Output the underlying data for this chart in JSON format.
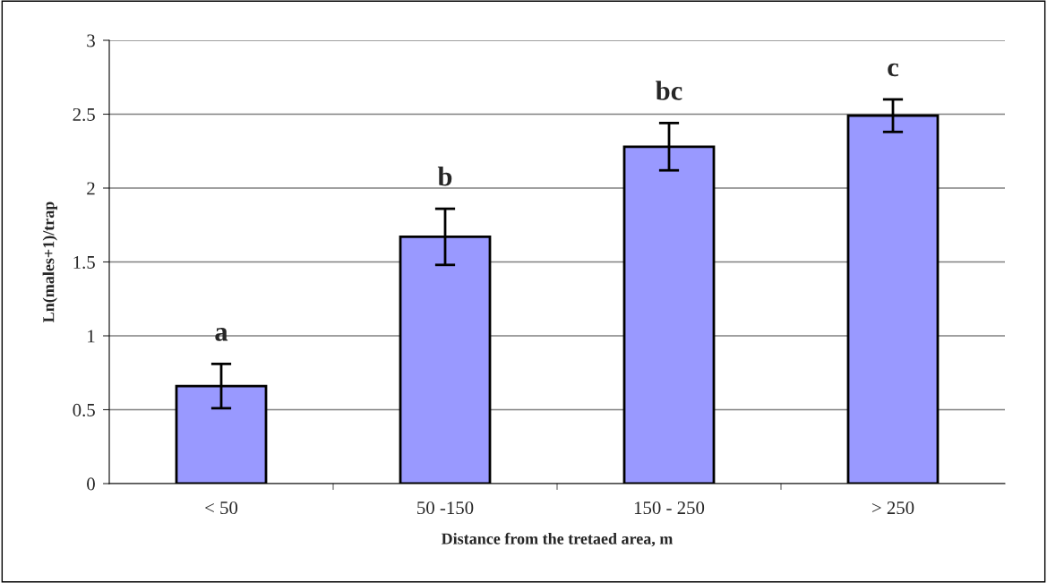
{
  "chart_data": {
    "type": "bar",
    "xlabel": "Distance from the tretaed area, m",
    "ylabel": "Ln(males+1)/trap",
    "categories": [
      "< 50",
      "50 -150",
      "150 - 250",
      "> 250"
    ],
    "values": [
      0.66,
      1.67,
      2.28,
      2.49
    ],
    "errors": [
      0.15,
      0.19,
      0.16,
      0.11
    ],
    "color": "#9999ff",
    "ylim": [
      0,
      3
    ],
    "yticks": [
      0,
      0.5,
      1,
      1.5,
      2,
      2.5,
      3
    ],
    "grid": "y",
    "legend": false,
    "annotations": [
      "a",
      "b",
      "bc",
      "c"
    ]
  }
}
